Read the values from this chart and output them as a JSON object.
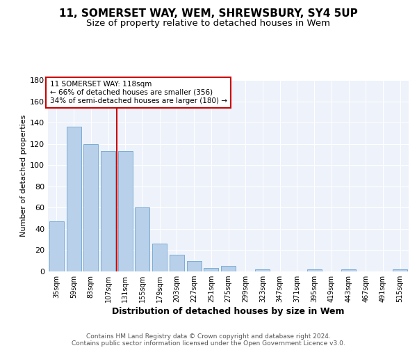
{
  "title": "11, SOMERSET WAY, WEM, SHREWSBURY, SY4 5UP",
  "subtitle": "Size of property relative to detached houses in Wem",
  "xlabel": "Distribution of detached houses by size in Wem",
  "ylabel": "Number of detached properties",
  "categories": [
    "35sqm",
    "59sqm",
    "83sqm",
    "107sqm",
    "131sqm",
    "155sqm",
    "179sqm",
    "203sqm",
    "227sqm",
    "251sqm",
    "275sqm",
    "299sqm",
    "323sqm",
    "347sqm",
    "371sqm",
    "395sqm",
    "419sqm",
    "443sqm",
    "467sqm",
    "491sqm",
    "515sqm"
  ],
  "values": [
    47,
    136,
    120,
    113,
    113,
    60,
    26,
    16,
    10,
    3,
    5,
    0,
    2,
    0,
    0,
    2,
    0,
    2,
    0,
    0,
    2
  ],
  "bar_color": "#b8d0ea",
  "bar_edge_color": "#7aadd4",
  "marker_label": "11 SOMERSET WAY: 118sqm",
  "annotation_line1": "← 66% of detached houses are smaller (356)",
  "annotation_line2": "34% of semi-detached houses are larger (180) →",
  "annotation_box_color": "#ffffff",
  "annotation_box_edge": "#cc0000",
  "marker_line_color": "#cc0000",
  "footer_line1": "Contains HM Land Registry data © Crown copyright and database right 2024.",
  "footer_line2": "Contains public sector information licensed under the Open Government Licence v3.0.",
  "ylim": [
    0,
    180
  ],
  "title_fontsize": 11,
  "subtitle_fontsize": 9.5,
  "xlabel_fontsize": 9,
  "ylabel_fontsize": 8,
  "background_color": "#eef2fb"
}
